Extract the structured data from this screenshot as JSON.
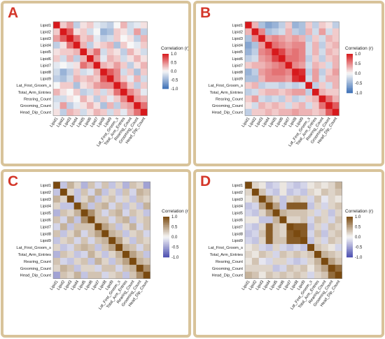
{
  "colors": {
    "border": "#d8c39a",
    "label": "#d4372a",
    "scheme_a_low": "#3b6fb6",
    "scheme_a_mid": "#f7f7f7",
    "scheme_a_high": "#d7191c",
    "scheme_c_low": "#4a4db0",
    "scheme_c_mid": "#f7f7f7",
    "scheme_c_high": "#7a4a10",
    "scheme_c_alt": "#d01c8b"
  },
  "chart_data": [
    {
      "panel_label": "A",
      "type": "heatmap",
      "color_scheme": "blue-red",
      "variables": [
        "Lipid1",
        "Lipid2",
        "Lipid3",
        "Lipid4",
        "Lipid5",
        "Lipid6",
        "Lipid7",
        "Lipid8",
        "Lipid9",
        "Lat_First_Groom_s",
        "Total_Arm_Entries",
        "Rearing_Count",
        "Grooming_Count",
        "Head_Dip_Count"
      ],
      "legend_title": "Correlation (r)",
      "legend_ticks": [
        "1.0",
        "0.5",
        "0.0",
        "-0.5",
        "-1.0"
      ],
      "legend_range": [
        -1,
        1
      ],
      "matrix": [
        [
          1.0,
          0.2,
          0.4,
          -0.3,
          0.1,
          0.2,
          -0.1,
          -0.2,
          -0.3,
          0.0,
          0.3,
          -0.2,
          -0.1,
          0.1
        ],
        [
          0.2,
          1.0,
          0.7,
          0.1,
          0.2,
          -0.2,
          0.0,
          -0.5,
          -0.4,
          0.2,
          0.1,
          -0.2,
          0.4,
          -0.3
        ],
        [
          0.4,
          0.7,
          1.0,
          0.6,
          0.2,
          0.3,
          -0.1,
          -0.3,
          -0.2,
          0.2,
          0.0,
          0.1,
          -0.3,
          0.3
        ],
        [
          -0.3,
          0.1,
          0.6,
          1.0,
          0.3,
          -0.3,
          0.1,
          0.2,
          0.3,
          -0.4,
          0.2,
          0.0,
          -0.1,
          0.2
        ],
        [
          0.1,
          0.2,
          0.2,
          0.3,
          1.0,
          0.3,
          0.6,
          -0.2,
          0.2,
          0.1,
          -0.3,
          0.3,
          0.1,
          -0.2
        ],
        [
          0.2,
          -0.2,
          0.3,
          -0.3,
          0.3,
          1.0,
          0.4,
          -0.1,
          0.3,
          0.2,
          -0.2,
          0.1,
          0.3,
          0.1
        ],
        [
          -0.1,
          0.0,
          -0.1,
          0.1,
          0.6,
          0.4,
          1.0,
          0.3,
          0.2,
          0.4,
          0.2,
          -0.3,
          0.1,
          0.3
        ],
        [
          -0.2,
          -0.5,
          -0.3,
          0.2,
          -0.2,
          -0.1,
          0.3,
          1.0,
          0.7,
          0.5,
          -0.2,
          0.2,
          -0.4,
          0.2
        ],
        [
          -0.3,
          -0.4,
          -0.2,
          0.3,
          0.2,
          0.3,
          0.2,
          0.7,
          1.0,
          0.5,
          0.2,
          -0.1,
          0.3,
          -0.2
        ],
        [
          0.0,
          0.2,
          0.2,
          -0.4,
          0.1,
          0.2,
          0.4,
          0.5,
          0.5,
          1.0,
          0.6,
          0.2,
          -0.3,
          0.2
        ],
        [
          0.3,
          0.1,
          0.0,
          0.2,
          -0.3,
          -0.2,
          0.2,
          -0.2,
          0.2,
          0.6,
          1.0,
          0.5,
          0.3,
          -0.1
        ],
        [
          -0.2,
          -0.2,
          0.1,
          0.0,
          0.3,
          0.1,
          -0.3,
          0.2,
          -0.1,
          0.2,
          0.5,
          1.0,
          0.4,
          0.3
        ],
        [
          -0.1,
          0.4,
          -0.3,
          -0.1,
          0.1,
          0.3,
          0.1,
          -0.4,
          0.3,
          -0.3,
          0.3,
          0.4,
          1.0,
          0.6
        ],
        [
          0.1,
          -0.3,
          0.3,
          0.2,
          -0.2,
          0.1,
          0.3,
          0.2,
          -0.2,
          0.2,
          -0.1,
          0.3,
          0.6,
          1.0
        ]
      ]
    },
    {
      "panel_label": "B",
      "type": "heatmap",
      "color_scheme": "blue-red",
      "variables": [
        "Lipid1",
        "Lipid2",
        "Lipid3",
        "Lipid4",
        "Lipid5",
        "Lipid6",
        "Lipid7",
        "Lipid8",
        "Lipid9",
        "Lat_First_Groom_s",
        "Total_Arm_Entries",
        "Rearing_Count",
        "Grooming_Count",
        "Head_Dip_Count"
      ],
      "legend_title": "Correlation (r)",
      "legend_ticks": [
        "1.0",
        "0.5",
        "0.0",
        "-0.5",
        "-1.0"
      ],
      "legend_range": [
        -1,
        1
      ],
      "matrix": [
        [
          1.0,
          0.3,
          -0.4,
          -0.6,
          -0.5,
          -0.3,
          0.2,
          -0.5,
          -0.4,
          0.2,
          -0.3,
          0.2,
          0.1,
          -0.3
        ],
        [
          0.3,
          1.0,
          0.5,
          -0.4,
          -0.3,
          -0.2,
          0.3,
          -0.3,
          -0.4,
          0.3,
          -0.2,
          0.4,
          -0.2,
          0.2
        ],
        [
          -0.4,
          0.5,
          1.0,
          0.4,
          0.5,
          0.4,
          0.3,
          0.4,
          0.3,
          -0.3,
          0.2,
          -0.2,
          0.3,
          0.2
        ],
        [
          -0.6,
          -0.4,
          0.4,
          1.0,
          0.6,
          0.5,
          0.4,
          0.5,
          0.5,
          -0.2,
          0.3,
          -0.3,
          0.2,
          0.3
        ],
        [
          -0.5,
          -0.3,
          0.5,
          0.6,
          1.0,
          0.8,
          0.5,
          0.6,
          0.5,
          -0.2,
          0.3,
          -0.2,
          0.3,
          0.2
        ],
        [
          -0.3,
          -0.2,
          0.4,
          0.5,
          0.8,
          1.0,
          0.6,
          0.6,
          0.5,
          -0.3,
          0.2,
          -0.3,
          0.2,
          0.3
        ],
        [
          0.2,
          0.3,
          0.3,
          0.4,
          0.5,
          0.6,
          1.0,
          0.5,
          0.4,
          -0.2,
          0.3,
          0.2,
          -0.2,
          0.3
        ],
        [
          -0.5,
          -0.3,
          0.4,
          0.5,
          0.6,
          0.6,
          0.5,
          1.0,
          0.9,
          -0.3,
          0.4,
          -0.3,
          0.2,
          0.4
        ],
        [
          -0.4,
          -0.4,
          0.3,
          0.5,
          0.5,
          0.5,
          0.4,
          0.9,
          1.0,
          -0.2,
          0.4,
          -0.2,
          0.3,
          0.3
        ],
        [
          0.2,
          0.3,
          -0.3,
          -0.2,
          -0.2,
          -0.3,
          -0.2,
          -0.3,
          -0.2,
          1.0,
          -0.3,
          0.2,
          -0.2,
          0.3
        ],
        [
          -0.3,
          -0.2,
          0.2,
          0.3,
          0.3,
          0.2,
          0.3,
          0.4,
          0.4,
          -0.3,
          1.0,
          0.3,
          0.2,
          0.2
        ],
        [
          0.2,
          0.4,
          -0.2,
          -0.3,
          -0.2,
          -0.3,
          0.2,
          -0.3,
          -0.2,
          0.2,
          0.3,
          1.0,
          0.6,
          0.3
        ],
        [
          0.1,
          -0.2,
          0.3,
          0.2,
          0.3,
          0.2,
          -0.2,
          0.2,
          0.3,
          -0.2,
          0.2,
          0.6,
          1.0,
          0.7
        ],
        [
          -0.3,
          0.2,
          0.2,
          0.3,
          0.2,
          0.3,
          0.3,
          0.4,
          0.3,
          0.3,
          0.2,
          0.3,
          0.7,
          1.0
        ]
      ]
    },
    {
      "panel_label": "C",
      "type": "heatmap",
      "color_scheme": "purple-brown",
      "variables": [
        "Lipid1",
        "Lipid2",
        "Lipid3",
        "Lipid4",
        "Lipid5",
        "Lipid6",
        "Lipid7",
        "Lipid8",
        "Lipid9",
        "Lat_First_Groom_s",
        "Total_Arm_Entries",
        "Rearing_Count",
        "Grooming_Count",
        "Head_Dip_Count"
      ],
      "legend_title": "Correlation (r)",
      "legend_ticks": [
        "1.0",
        "0.5",
        "0.0",
        "-0.5",
        "-1.0"
      ],
      "legend_range": [
        -1,
        1
      ],
      "matrix": [
        [
          1.0,
          -0.3,
          0.4,
          0.2,
          -0.4,
          0.3,
          -0.2,
          0.3,
          -0.3,
          0.2,
          -0.4,
          0.3,
          0.2,
          -0.5
        ],
        [
          -0.3,
          1.0,
          0.2,
          -0.3,
          0.3,
          -0.2,
          0.4,
          -0.3,
          0.2,
          -0.3,
          0.3,
          -0.2,
          0.4,
          0.3
        ],
        [
          0.4,
          0.2,
          1.0,
          -0.3,
          0.2,
          0.4,
          -0.3,
          0.2,
          0.3,
          -0.2,
          0.2,
          -0.3,
          0.3,
          0.2
        ],
        [
          0.2,
          -0.3,
          -0.3,
          1.0,
          0.4,
          -0.3,
          0.3,
          0.4,
          -0.2,
          0.3,
          -0.3,
          0.2,
          -0.3,
          0.4
        ],
        [
          -0.4,
          0.3,
          0.2,
          0.4,
          1.0,
          0.6,
          0.3,
          -0.2,
          0.3,
          0.4,
          -0.2,
          0.3,
          0.2,
          -0.3
        ],
        [
          0.3,
          -0.2,
          0.4,
          -0.3,
          0.6,
          1.0,
          0.3,
          0.3,
          -0.2,
          0.3,
          0.4,
          -0.3,
          0.2,
          0.3
        ],
        [
          -0.2,
          0.4,
          -0.3,
          0.3,
          0.3,
          0.3,
          1.0,
          0.5,
          0.3,
          -0.3,
          0.2,
          0.4,
          -0.2,
          0.3
        ],
        [
          0.3,
          -0.3,
          0.2,
          0.4,
          -0.2,
          0.3,
          0.5,
          1.0,
          0.4,
          0.3,
          -0.3,
          0.2,
          0.3,
          -0.2
        ],
        [
          -0.3,
          0.2,
          0.3,
          -0.2,
          0.3,
          -0.2,
          0.3,
          0.4,
          1.0,
          0.5,
          0.2,
          -0.3,
          0.3,
          0.2
        ],
        [
          0.2,
          -0.3,
          -0.2,
          0.3,
          0.4,
          0.3,
          -0.3,
          0.3,
          0.5,
          1.0,
          0.4,
          0.3,
          -0.2,
          0.3
        ],
        [
          -0.4,
          0.3,
          0.2,
          -0.3,
          -0.2,
          0.4,
          0.2,
          -0.3,
          0.2,
          0.4,
          1.0,
          0.5,
          0.3,
          -0.3
        ],
        [
          0.3,
          -0.2,
          -0.3,
          0.2,
          0.3,
          -0.3,
          0.4,
          0.2,
          -0.3,
          0.3,
          0.5,
          1.0,
          0.4,
          0.3
        ],
        [
          0.2,
          0.4,
          0.3,
          -0.3,
          0.2,
          0.2,
          -0.2,
          0.3,
          0.3,
          -0.2,
          0.3,
          0.4,
          1.0,
          0.6
        ],
        [
          -0.5,
          0.3,
          0.2,
          0.4,
          -0.3,
          0.3,
          0.3,
          -0.2,
          0.2,
          0.3,
          -0.3,
          0.3,
          0.6,
          1.0
        ]
      ]
    },
    {
      "panel_label": "D",
      "type": "heatmap",
      "color_scheme": "purple-brown",
      "variables": [
        "Lipid1",
        "Lipid2",
        "Lipid3",
        "Lipid4",
        "Lipid5",
        "Lipid6",
        "Lipid7",
        "Lipid8",
        "Lipid9",
        "Lat_First_Groom_s",
        "Total_Arm_Entries",
        "Rearing_Count",
        "Grooming_Count",
        "Head_Dip_Count"
      ],
      "legend_title": "Correlation (r)",
      "legend_ticks": [
        "1.0",
        "0.5",
        "0.0",
        "-0.5",
        "-1.0"
      ],
      "legend_range": [
        -1,
        1
      ],
      "matrix": [
        [
          1.0,
          0.2,
          0.1,
          -0.3,
          -0.2,
          0.1,
          -0.2,
          -0.3,
          -0.2,
          0.1,
          0.2,
          0.1,
          0.2,
          0.4
        ],
        [
          0.2,
          1.0,
          0.3,
          -0.2,
          -0.3,
          0.1,
          -0.3,
          -0.2,
          -0.3,
          0.2,
          0.1,
          0.3,
          0.2,
          0.3
        ],
        [
          0.1,
          0.3,
          1.0,
          0.5,
          0.2,
          -0.3,
          0.2,
          0.3,
          0.2,
          -0.2,
          0.3,
          -0.1,
          0.2,
          0.1
        ],
        [
          -0.3,
          -0.2,
          0.5,
          1.0,
          0.5,
          -0.3,
          0.9,
          0.9,
          0.9,
          -0.3,
          0.2,
          -0.2,
          0.2,
          0.3
        ],
        [
          -0.2,
          -0.3,
          0.2,
          0.5,
          1.0,
          0.4,
          0.3,
          0.3,
          0.3,
          0.2,
          -0.2,
          0.2,
          -0.3,
          0.2
        ],
        [
          0.1,
          0.1,
          -0.3,
          -0.3,
          0.4,
          1.0,
          0.2,
          0.2,
          0.3,
          -0.2,
          0.3,
          0.2,
          -0.2,
          0.3
        ],
        [
          -0.2,
          -0.3,
          0.2,
          0.9,
          0.3,
          0.2,
          1.0,
          0.9,
          0.9,
          -0.3,
          0.2,
          -0.2,
          0.3,
          0.2
        ],
        [
          -0.3,
          -0.2,
          0.3,
          0.9,
          0.3,
          0.2,
          0.9,
          1.0,
          0.9,
          -0.2,
          0.3,
          -0.3,
          0.2,
          0.3
        ],
        [
          -0.2,
          -0.3,
          0.2,
          0.9,
          0.3,
          0.3,
          0.9,
          0.9,
          1.0,
          -0.3,
          0.2,
          -0.2,
          0.3,
          0.2
        ],
        [
          0.1,
          0.2,
          -0.2,
          -0.3,
          0.2,
          -0.2,
          -0.3,
          -0.2,
          -0.3,
          1.0,
          0.3,
          0.2,
          0.1,
          -0.2
        ],
        [
          0.2,
          0.1,
          0.3,
          0.2,
          -0.2,
          0.3,
          0.2,
          0.3,
          0.2,
          0.3,
          1.0,
          0.4,
          0.3,
          0.2
        ],
        [
          0.1,
          0.3,
          -0.1,
          -0.2,
          0.2,
          0.2,
          -0.2,
          -0.3,
          -0.2,
          0.2,
          0.4,
          1.0,
          0.5,
          0.3
        ],
        [
          0.2,
          0.2,
          0.2,
          0.2,
          -0.3,
          -0.2,
          0.3,
          0.2,
          0.3,
          0.1,
          0.3,
          0.5,
          1.0,
          0.8
        ],
        [
          0.4,
          0.3,
          0.1,
          0.3,
          0.2,
          0.3,
          0.2,
          0.3,
          0.2,
          -0.2,
          0.2,
          0.3,
          0.8,
          1.0
        ]
      ]
    }
  ]
}
